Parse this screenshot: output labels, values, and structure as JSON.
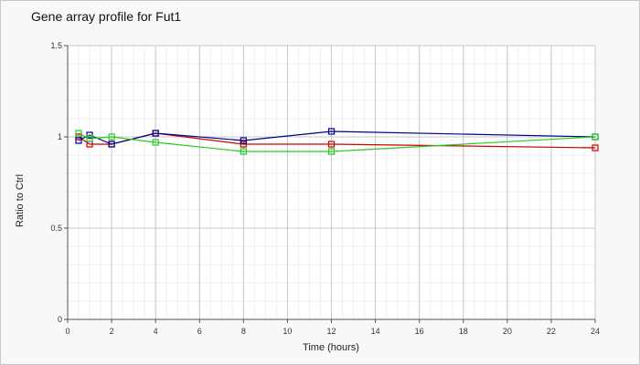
{
  "chart_data": {
    "type": "line",
    "title": "Gene array profile for Fut1",
    "xlabel": "Time (hours)",
    "ylabel": "Ratio to Ctrl",
    "xlim": [
      0,
      24
    ],
    "ylim": [
      0,
      1.5
    ],
    "x_ticks": [
      "0",
      "2",
      "4",
      "6",
      "8",
      "10",
      "12",
      "14",
      "16",
      "18",
      "20",
      "22",
      "24"
    ],
    "y_ticks": [
      "0",
      "0.5",
      "1",
      "1.5"
    ],
    "grid": true,
    "legend": "none",
    "x": [
      0.5,
      1,
      2,
      4,
      8,
      12,
      24
    ],
    "series": [
      {
        "color": "#cc0000",
        "values": [
          1.0,
          0.96,
          0.96,
          1.02,
          0.96,
          0.96,
          0.94
        ]
      },
      {
        "color": "#00008b",
        "values": [
          0.98,
          1.01,
          0.96,
          1.02,
          0.98,
          1.03,
          1.0
        ]
      },
      {
        "color": "#22cc22",
        "values": [
          1.02,
          0.99,
          1.0,
          0.97,
          0.92,
          0.92,
          1.0
        ]
      }
    ]
  }
}
